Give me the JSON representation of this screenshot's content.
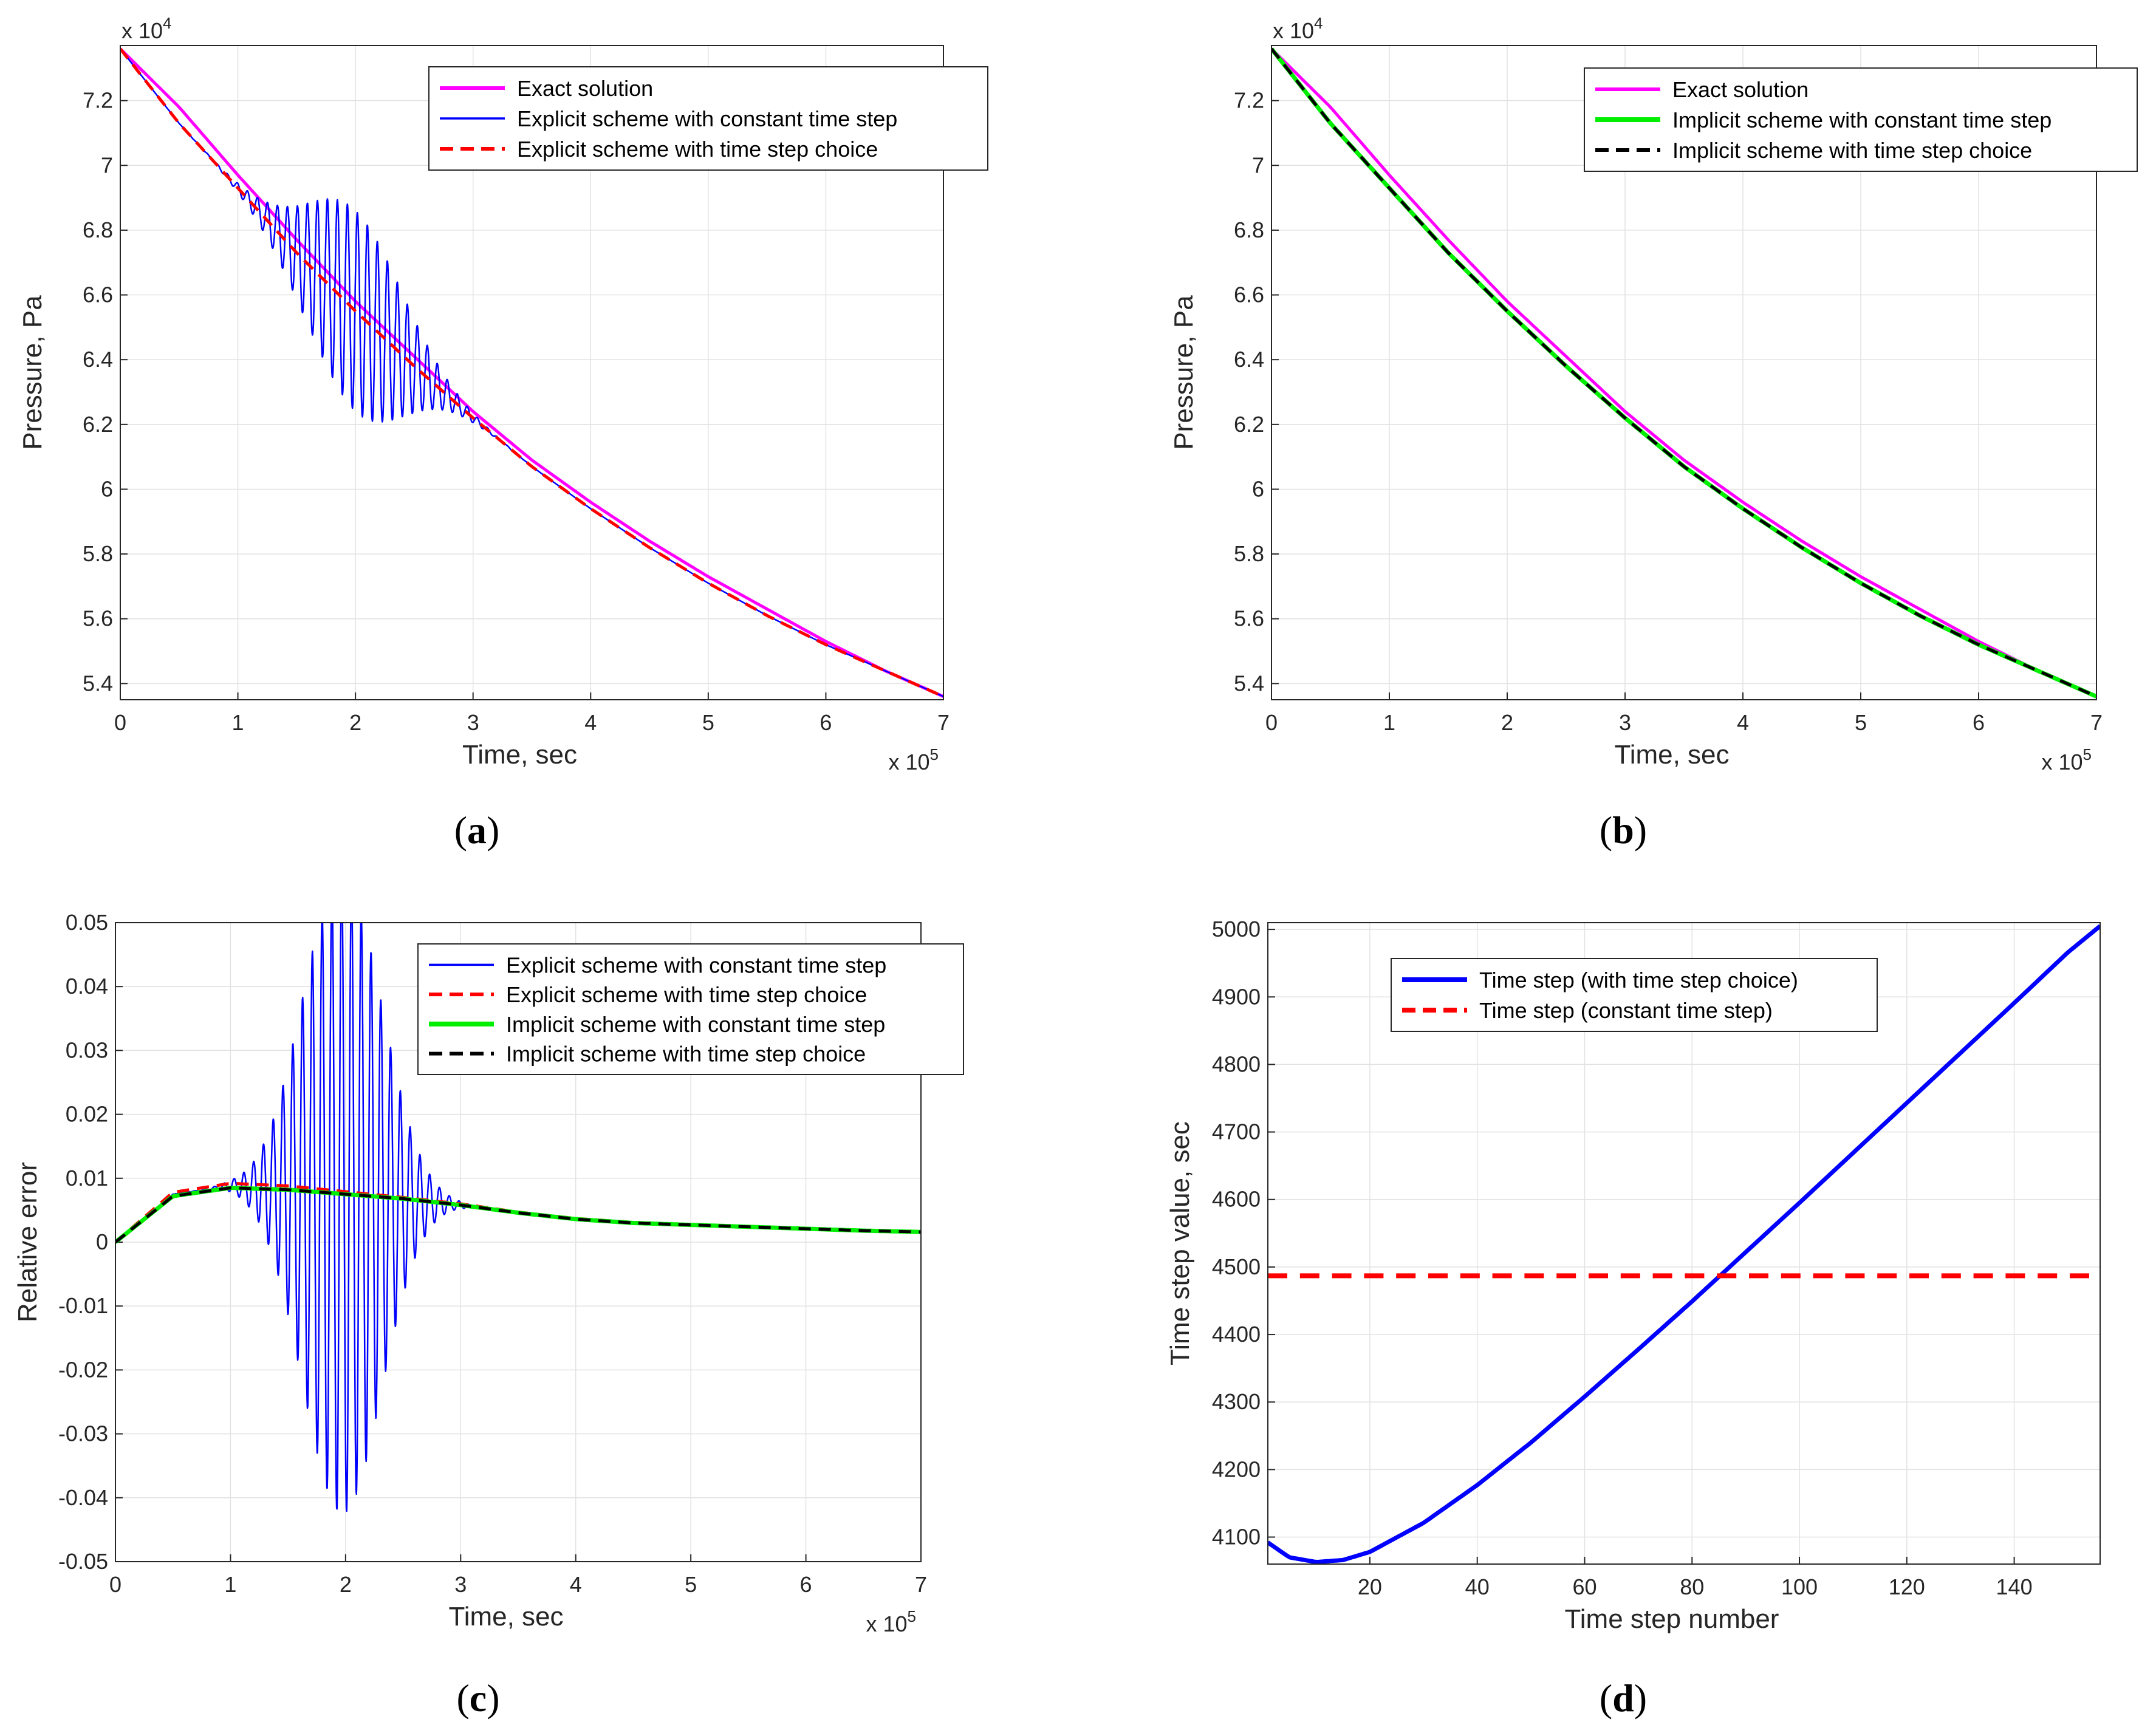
{
  "chart_data": [
    {
      "id": "a",
      "type": "line",
      "panel_label": "a",
      "xlabel": "Time, sec",
      "ylabel": "Pressure, Pa",
      "x_multiplier": "x 10",
      "x_multiplier_exp": "5",
      "y_multiplier": "x 10",
      "y_multiplier_exp": "4",
      "xlim": [
        0,
        7
      ],
      "ylim": [
        5.35,
        7.37
      ],
      "xticks": [
        "0",
        "1",
        "2",
        "3",
        "4",
        "5",
        "6",
        "7"
      ],
      "yticks": [
        "5.4",
        "5.6",
        "5.8",
        "6",
        "6.2",
        "6.4",
        "6.6",
        "6.8",
        "7",
        "7.2"
      ],
      "grid": true,
      "legend_position": "top-right",
      "series": [
        {
          "name": "Exact solution",
          "color": "#ff00ff",
          "style": "solid",
          "width": 5,
          "x": [
            0,
            0.5,
            1,
            1.5,
            2,
            2.5,
            3,
            3.5,
            4,
            4.5,
            5,
            5.5,
            6,
            6.5,
            7
          ],
          "y": [
            7.36,
            7.18,
            6.97,
            6.77,
            6.58,
            6.41,
            6.24,
            6.09,
            5.96,
            5.84,
            5.73,
            5.63,
            5.53,
            5.44,
            5.36
          ]
        },
        {
          "name": "Explicit scheme with constant time step",
          "color": "#0000ff",
          "style": "solid",
          "width": 2.5,
          "x": [
            0,
            0.5,
            1,
            1.5,
            2,
            2.5,
            3,
            3.5,
            4,
            4.5,
            5,
            5.5,
            6,
            6.5,
            7
          ],
          "y": [
            7.36,
            7.13,
            6.93,
            6.73,
            6.55,
            6.38,
            6.22,
            6.07,
            5.94,
            5.82,
            5.71,
            5.61,
            5.52,
            5.44,
            5.36
          ],
          "oscillation": {
            "x_start": 0.55,
            "x_end": 4.3,
            "center": 2.0,
            "width": 0.85,
            "amplitude": 0.31,
            "period": 0.085
          }
        },
        {
          "name": "Explicit scheme with time step choice",
          "color": "#ff0000",
          "style": "dashed",
          "width": 5,
          "x": [
            0,
            0.5,
            1,
            1.5,
            2,
            2.5,
            3,
            3.5,
            4,
            4.5,
            5,
            5.5,
            6,
            6.5,
            7
          ],
          "y": [
            7.36,
            7.13,
            6.93,
            6.73,
            6.55,
            6.38,
            6.22,
            6.07,
            5.94,
            5.82,
            5.71,
            5.61,
            5.52,
            5.44,
            5.36
          ]
        }
      ]
    },
    {
      "id": "b",
      "type": "line",
      "panel_label": "b",
      "xlabel": "Time, sec",
      "ylabel": "Pressure, Pa",
      "x_multiplier": "x 10",
      "x_multiplier_exp": "5",
      "y_multiplier": "x 10",
      "y_multiplier_exp": "4",
      "xlim": [
        0,
        7
      ],
      "ylim": [
        5.35,
        7.37
      ],
      "xticks": [
        "0",
        "1",
        "2",
        "3",
        "4",
        "5",
        "6",
        "7"
      ],
      "yticks": [
        "5.4",
        "5.6",
        "5.8",
        "6",
        "6.2",
        "6.4",
        "6.6",
        "6.8",
        "7",
        "7.2"
      ],
      "grid": true,
      "legend_position": "top-right",
      "series": [
        {
          "name": "Exact solution",
          "color": "#ff00ff",
          "style": "solid",
          "width": 5,
          "x": [
            0,
            0.5,
            1,
            1.5,
            2,
            2.5,
            3,
            3.5,
            4,
            4.5,
            5,
            5.5,
            6,
            6.5,
            7
          ],
          "y": [
            7.36,
            7.18,
            6.97,
            6.77,
            6.58,
            6.41,
            6.24,
            6.09,
            5.96,
            5.84,
            5.73,
            5.63,
            5.53,
            5.44,
            5.36
          ]
        },
        {
          "name": "Implicit scheme with constant time step",
          "color": "#00ee00",
          "style": "solid",
          "width": 7,
          "x": [
            0,
            0.5,
            1,
            1.5,
            2,
            2.5,
            3,
            3.5,
            4,
            4.5,
            5,
            5.5,
            6,
            6.5,
            7
          ],
          "y": [
            7.36,
            7.13,
            6.93,
            6.73,
            6.55,
            6.38,
            6.22,
            6.07,
            5.94,
            5.82,
            5.71,
            5.61,
            5.52,
            5.44,
            5.36
          ]
        },
        {
          "name": "Implicit scheme with time step choice",
          "color": "#000000",
          "style": "dashed",
          "width": 5,
          "x": [
            0,
            0.5,
            1,
            1.5,
            2,
            2.5,
            3,
            3.5,
            4,
            4.5,
            5,
            5.5,
            6,
            6.5,
            7
          ],
          "y": [
            7.36,
            7.13,
            6.93,
            6.73,
            6.55,
            6.38,
            6.22,
            6.07,
            5.94,
            5.82,
            5.71,
            5.61,
            5.52,
            5.44,
            5.36
          ]
        }
      ]
    },
    {
      "id": "c",
      "type": "line",
      "panel_label": "c",
      "xlabel": "Time, sec",
      "ylabel": "Relative error",
      "x_multiplier": "x 10",
      "x_multiplier_exp": "5",
      "xlim": [
        0,
        7
      ],
      "ylim": [
        -0.05,
        0.05
      ],
      "xticks": [
        "0",
        "1",
        "2",
        "3",
        "4",
        "5",
        "6",
        "7"
      ],
      "yticks": [
        "-0.05",
        "-0.04",
        "-0.03",
        "-0.02",
        "-0.01",
        "0",
        "0.01",
        "0.02",
        "0.03",
        "0.04",
        "0.05"
      ],
      "grid": true,
      "legend_position": "top-right",
      "series": [
        {
          "name": "Explicit scheme with constant time step",
          "color": "#0000ff",
          "style": "solid",
          "width": 2.5,
          "x": [
            0,
            0.5,
            1,
            1.5,
            2,
            2.5,
            3,
            3.5,
            4,
            4.5,
            5,
            5.5,
            6,
            6.5,
            7
          ],
          "y": [
            0,
            0.0075,
            0.0088,
            0.0082,
            0.0075,
            0.0068,
            0.0058,
            0.0045,
            0.0035,
            0.003,
            0.0027,
            0.0024,
            0.0021,
            0.0018,
            0.0016
          ],
          "oscillation": {
            "x_start": 0.5,
            "x_end": 4.0,
            "center": 1.97,
            "width": 0.72,
            "amplitude": 0.05,
            "period": 0.085
          }
        },
        {
          "name": "Explicit scheme with time step choice",
          "color": "#ff0000",
          "style": "dashed",
          "width": 5,
          "x": [
            0,
            0.5,
            1,
            1.5,
            2,
            2.5,
            3,
            3.5,
            4,
            4.5,
            5,
            5.5,
            6,
            6.5,
            7
          ],
          "y": [
            0,
            0.0078,
            0.0092,
            0.0088,
            0.0079,
            0.007,
            0.006,
            0.0047,
            0.0037,
            0.0031,
            0.0027,
            0.0024,
            0.0021,
            0.0018,
            0.0016
          ]
        },
        {
          "name": "Implicit scheme with constant time step",
          "color": "#00ee00",
          "style": "solid",
          "width": 7,
          "x": [
            0,
            0.5,
            1,
            1.5,
            2,
            2.5,
            3,
            3.5,
            4,
            4.5,
            5,
            5.5,
            6,
            6.5,
            7
          ],
          "y": [
            0,
            0.0072,
            0.0085,
            0.0082,
            0.0075,
            0.0068,
            0.0058,
            0.0046,
            0.0036,
            0.003,
            0.0027,
            0.0024,
            0.0021,
            0.0018,
            0.0016
          ]
        },
        {
          "name": "Implicit scheme with time step choice",
          "color": "#000000",
          "style": "dashed",
          "width": 5,
          "x": [
            0,
            0.5,
            1,
            1.5,
            2,
            2.5,
            3,
            3.5,
            4,
            4.5,
            5,
            5.5,
            6,
            6.5,
            7
          ],
          "y": [
            0,
            0.0072,
            0.0085,
            0.0082,
            0.0075,
            0.0068,
            0.0058,
            0.0046,
            0.0036,
            0.003,
            0.0027,
            0.0024,
            0.0021,
            0.0018,
            0.0016
          ]
        }
      ]
    },
    {
      "id": "d",
      "type": "line",
      "panel_label": "d",
      "xlabel": "Time step number",
      "ylabel": "Time step value, sec",
      "xlim": [
        1,
        156
      ],
      "ylim": [
        4060,
        5010
      ],
      "xticks": [
        "20",
        "40",
        "60",
        "80",
        "100",
        "120",
        "140"
      ],
      "yticks": [
        "4100",
        "4200",
        "4300",
        "4400",
        "4500",
        "4600",
        "4700",
        "4800",
        "4900",
        "5000"
      ],
      "grid": true,
      "legend_position": "top-center",
      "series": [
        {
          "name": "Time step (with time step choice)",
          "color": "#0000ff",
          "style": "solid",
          "width": 7,
          "x": [
            1,
            5,
            10,
            15,
            20,
            30,
            40,
            50,
            60,
            70,
            80,
            90,
            100,
            110,
            120,
            130,
            140,
            150,
            156
          ],
          "y": [
            4092,
            4070,
            4063,
            4066,
            4078,
            4121,
            4177,
            4240,
            4308,
            4378,
            4449,
            4522,
            4595,
            4669,
            4743,
            4817,
            4891,
            4966,
            5005
          ]
        },
        {
          "name": "Time step (constant time step)",
          "color": "#ff0000",
          "style": "dashed",
          "width": 8,
          "x": [
            1,
            156
          ],
          "y": [
            4487,
            4487
          ]
        }
      ]
    }
  ]
}
